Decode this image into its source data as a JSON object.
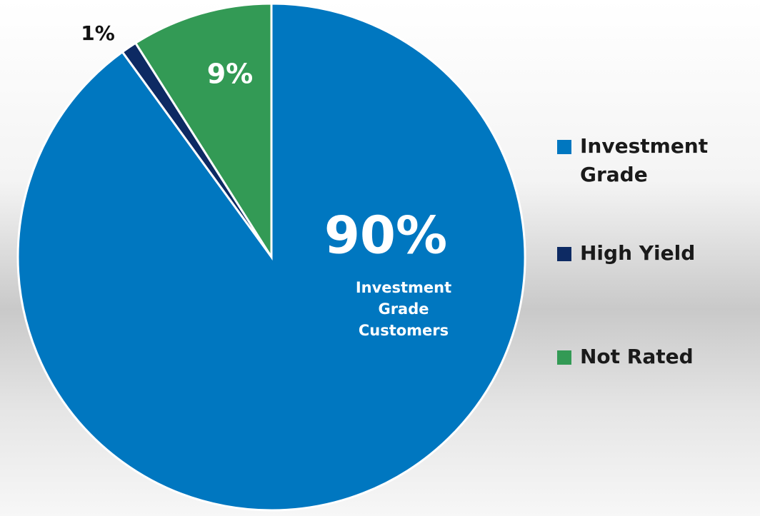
{
  "chart_data": {
    "type": "pie",
    "categories": [
      "Investment Grade",
      "High Yield",
      "Not Rated"
    ],
    "values": [
      90,
      1,
      9
    ],
    "value_labels": [
      "90%",
      "1%",
      "9%"
    ],
    "colors": [
      "#0077c0",
      "#0d2a63",
      "#339a55"
    ],
    "annotation": "Investment Grade Customers",
    "legend": "right"
  }
}
